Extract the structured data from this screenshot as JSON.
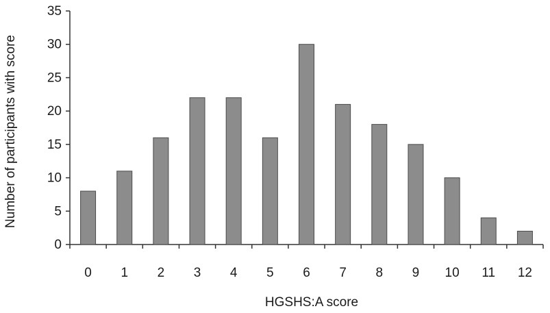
{
  "chart_data": {
    "type": "bar",
    "categories": [
      "0",
      "1",
      "2",
      "3",
      "4",
      "5",
      "6",
      "7",
      "8",
      "9",
      "10",
      "11",
      "12"
    ],
    "values": [
      8,
      11,
      16,
      22,
      22,
      16,
      30,
      21,
      18,
      15,
      10,
      4,
      2
    ],
    "xlabel": "HGSHS:A score",
    "ylabel": "Number of participants with score",
    "ylim": [
      0,
      35
    ],
    "yticks": [
      "0",
      "5",
      "10",
      "15",
      "20",
      "25",
      "30",
      "35"
    ],
    "grid": false,
    "bar_color": "#8c8c8c",
    "bar_edge_color": "#4a4a4a",
    "axis_color": "#333333"
  }
}
